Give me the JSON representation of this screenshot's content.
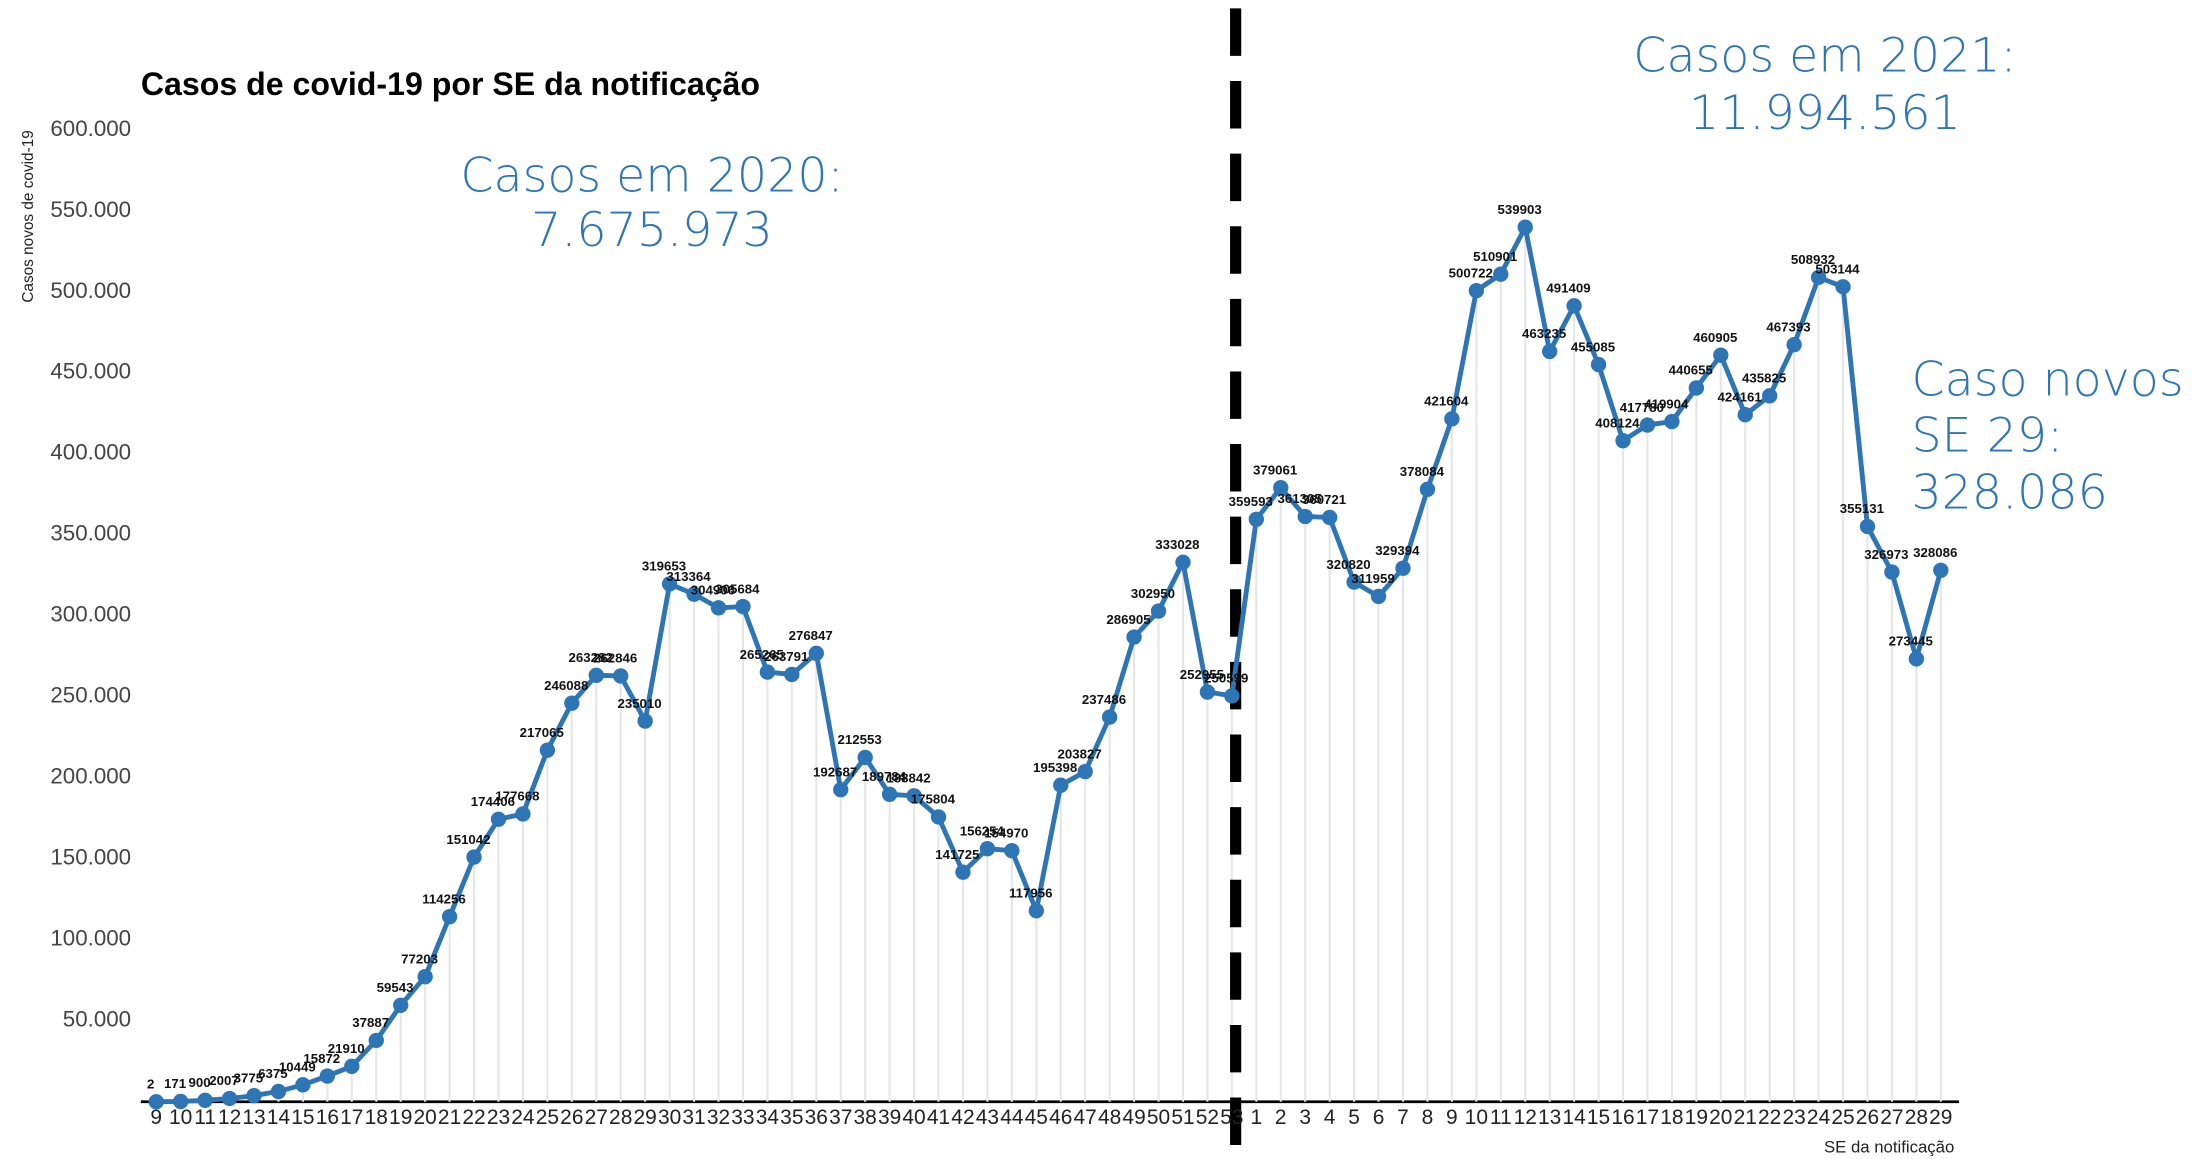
{
  "chart_data": {
    "type": "line",
    "title": "Casos de covid-19 por SE da notificação",
    "y_label": "Casos novos de covid-19",
    "x_label": "SE da notificação",
    "color": "#2e75b6",
    "categories": [
      "9",
      "10",
      "11",
      "12",
      "13",
      "14",
      "15",
      "16",
      "17",
      "18",
      "19",
      "20",
      "21",
      "22",
      "23",
      "24",
      "25",
      "26",
      "27",
      "28",
      "29",
      "30",
      "31",
      "32",
      "33",
      "34",
      "35",
      "36",
      "37",
      "38",
      "39",
      "40",
      "41",
      "42",
      "43",
      "44",
      "45",
      "46",
      "47",
      "48",
      "49",
      "50",
      "51",
      "52",
      "53",
      "1",
      "2",
      "3",
      "4",
      "5",
      "6",
      "7",
      "8",
      "9",
      "10",
      "11",
      "12",
      "13",
      "14",
      "15",
      "16",
      "17",
      "18",
      "19",
      "20",
      "21",
      "22",
      "23",
      "24",
      "25",
      "26",
      "27",
      "28",
      "29"
    ],
    "values": [
      2,
      171,
      900,
      2007,
      3775,
      6375,
      10449,
      15872,
      21910,
      37887,
      59543,
      77203,
      114256,
      151042,
      174406,
      177668,
      217065,
      246088,
      263282,
      262846,
      235010,
      319653,
      313364,
      304906,
      305684,
      265265,
      263791,
      276847,
      192687,
      212553,
      189784,
      188842,
      175804,
      141725,
      156254,
      154970,
      117956,
      195398,
      203827,
      237486,
      286905,
      302950,
      333028,
      252955,
      250599,
      359593,
      379061,
      361305,
      360721,
      320820,
      311959,
      329394,
      378084,
      421604,
      500722,
      510901,
      539903,
      463235,
      491409,
      455085,
      408124,
      417780,
      419904,
      440655,
      460905,
      424161,
      435825,
      467393,
      508932,
      503144,
      355131,
      326973,
      273445,
      328086
    ],
    "ylim": [
      0,
      600000
    ],
    "yticks": [
      {
        "value": 50000,
        "label": "50.000"
      },
      {
        "value": 100000,
        "label": "100.000"
      },
      {
        "value": 150000,
        "label": "150.000"
      },
      {
        "value": 200000,
        "label": "200.000"
      },
      {
        "value": 250000,
        "label": "250.000"
      },
      {
        "value": 300000,
        "label": "300.000"
      },
      {
        "value": 350000,
        "label": "350.000"
      },
      {
        "value": 400000,
        "label": "400.000"
      },
      {
        "value": 450000,
        "label": "450.000"
      },
      {
        "value": 500000,
        "label": "500.000"
      },
      {
        "value": 550000,
        "label": "550.000"
      },
      {
        "value": 600000,
        "label": "600.000"
      }
    ],
    "annotations": [
      "Casos em 2020:",
      "7.675.973",
      "Casos em 2021:",
      "11.994.561",
      "Caso novos",
      "SE 29:",
      "328.086"
    ]
  }
}
